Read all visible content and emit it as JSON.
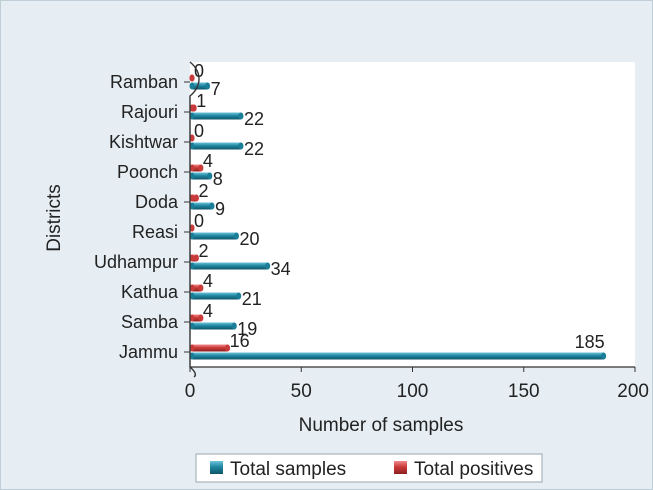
{
  "chart_data": {
    "type": "bar",
    "orientation": "horizontal",
    "categories": [
      "Jammu",
      "Samba",
      "Kathua",
      "Udhampur",
      "Reasi",
      "Doda",
      "Poonch",
      "Kishtwar",
      "Rajouri",
      "Ramban"
    ],
    "series": [
      {
        "name": "Total samples",
        "values": [
          185,
          19,
          21,
          34,
          20,
          9,
          8,
          22,
          22,
          7
        ],
        "color": "#1b7e98"
      },
      {
        "name": "Total positives",
        "values": [
          16,
          4,
          4,
          2,
          0,
          2,
          4,
          0,
          1,
          0
        ],
        "color": "#c93b3b"
      }
    ],
    "xlabel": "Number of samples",
    "ylabel": "Districts",
    "xlim": [
      0,
      200
    ],
    "xticks": [
      "0",
      "50",
      "100",
      "150",
      "200"
    ],
    "grid": false,
    "legend_position": "bottom"
  }
}
